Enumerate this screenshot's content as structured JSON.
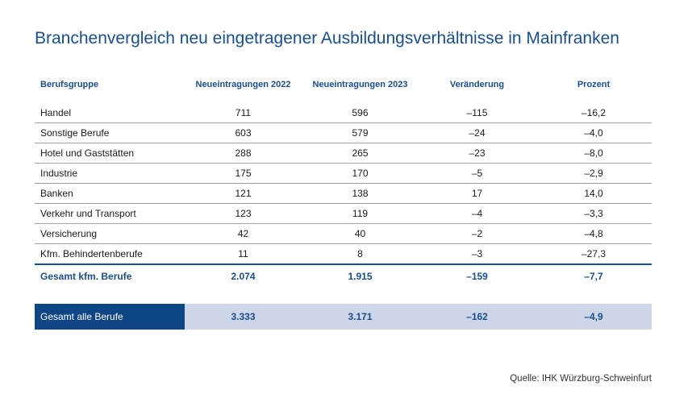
{
  "title": "Branchenvergleich neu eingetragener Ausbildungsverhältnisse in Mainfranken",
  "table": {
    "headers": [
      "Berufsgruppe",
      "Neueintragungen 2022",
      "Neueintragungen 2023",
      "Veränderung",
      "Prozent"
    ],
    "rows": [
      [
        "Handel",
        "711",
        "596",
        "–115",
        "–16,2"
      ],
      [
        "Sonstige Berufe",
        "603",
        "579",
        "–24",
        "–4,0"
      ],
      [
        "Hotel und Gaststätten",
        "288",
        "265",
        "–23",
        "–8,0"
      ],
      [
        "Industrie",
        "175",
        "170",
        "–5",
        "–2,9"
      ],
      [
        "Banken",
        "121",
        "138",
        "17",
        "14,0"
      ],
      [
        "Verkehr und Transport",
        "123",
        "119",
        "–4",
        "–3,3"
      ],
      [
        "Versicherung",
        "42",
        "40",
        "–2",
        "–4,8"
      ],
      [
        "Kfm. Behindertenberufe",
        "11",
        "8",
        "–3",
        "–27,3"
      ]
    ],
    "subtotal": [
      "Gesamt kfm. Berufe",
      "2.074",
      "1.915",
      "–159",
      "–7,7"
    ],
    "total": [
      "Gesamt alle Berufe",
      "3.333",
      "3.171",
      "–162",
      "–4,9"
    ]
  },
  "source": "Quelle: IHK Würzburg-Schweinfurt",
  "colors": {
    "accent": "#1a4e8c",
    "total_label_bg": "#0e4585",
    "total_bg": "#cdd5e8"
  }
}
